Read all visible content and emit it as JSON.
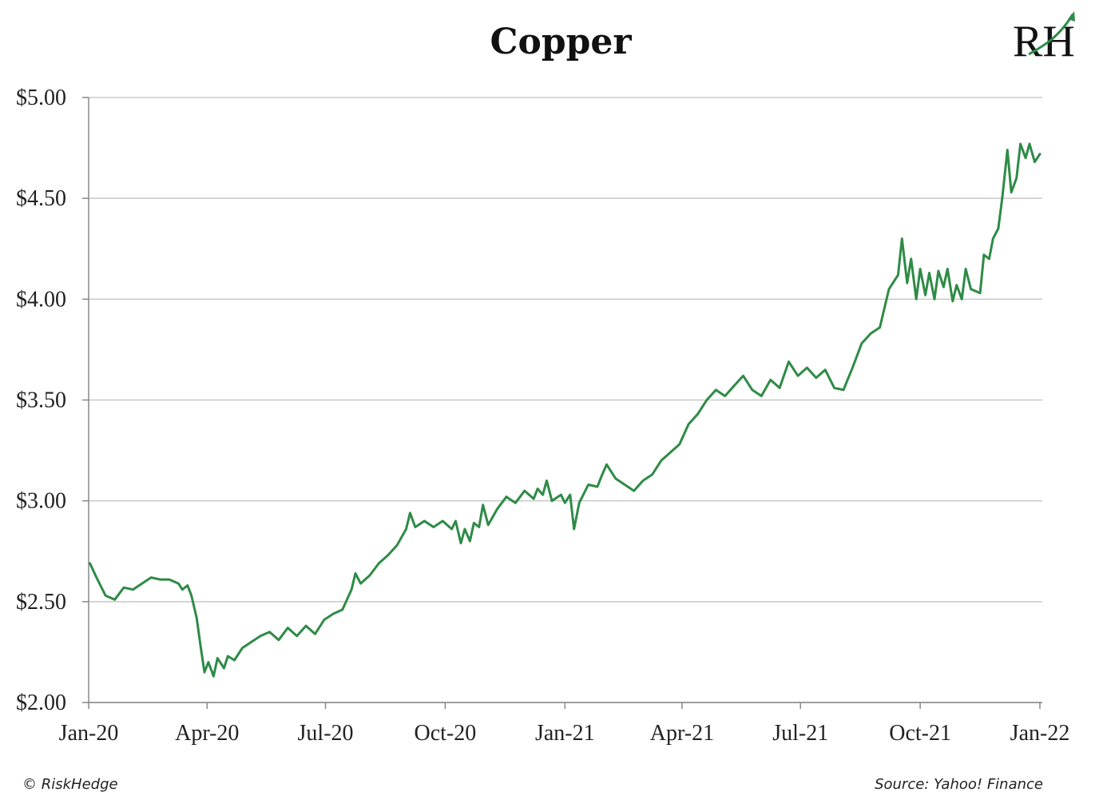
{
  "chart_data": {
    "type": "line",
    "title": "Copper",
    "xlabel": "",
    "ylabel": "",
    "ylim": [
      2.0,
      5.0
    ],
    "y_ticks": [
      {
        "value": 2.0,
        "label": "$2.00"
      },
      {
        "value": 2.5,
        "label": "$2.50"
      },
      {
        "value": 3.0,
        "label": "$3.00"
      },
      {
        "value": 3.5,
        "label": "$3.50"
      },
      {
        "value": 4.0,
        "label": "$4.00"
      },
      {
        "value": 4.5,
        "label": "$4.50"
      },
      {
        "value": 5.0,
        "label": "$5.00"
      }
    ],
    "x_ticks": [
      "Jan-20",
      "Apr-20",
      "Jul-20",
      "Oct-20",
      "Jan-21",
      "Apr-21",
      "Jul-21",
      "Oct-21",
      "Jan-22"
    ],
    "grid": true,
    "line_color": "#2e8b47",
    "series": [
      {
        "points": [
          [
            "2020-01-02",
            2.69
          ],
          [
            "2020-01-07",
            2.62
          ],
          [
            "2020-01-14",
            2.53
          ],
          [
            "2020-01-21",
            2.51
          ],
          [
            "2020-01-28",
            2.57
          ],
          [
            "2020-02-04",
            2.56
          ],
          [
            "2020-02-11",
            2.59
          ],
          [
            "2020-02-18",
            2.62
          ],
          [
            "2020-02-25",
            2.61
          ],
          [
            "2020-03-03",
            2.61
          ],
          [
            "2020-03-10",
            2.59
          ],
          [
            "2020-03-13",
            2.56
          ],
          [
            "2020-03-17",
            2.58
          ],
          [
            "2020-03-20",
            2.53
          ],
          [
            "2020-03-24",
            2.42
          ],
          [
            "2020-03-27",
            2.28
          ],
          [
            "2020-03-30",
            2.15
          ],
          [
            "2020-04-02",
            2.2
          ],
          [
            "2020-04-06",
            2.13
          ],
          [
            "2020-04-09",
            2.22
          ],
          [
            "2020-04-14",
            2.17
          ],
          [
            "2020-04-17",
            2.23
          ],
          [
            "2020-04-22",
            2.21
          ],
          [
            "2020-04-28",
            2.27
          ],
          [
            "2020-05-05",
            2.3
          ],
          [
            "2020-05-12",
            2.33
          ],
          [
            "2020-05-19",
            2.35
          ],
          [
            "2020-05-26",
            2.31
          ],
          [
            "2020-06-02",
            2.37
          ],
          [
            "2020-06-09",
            2.33
          ],
          [
            "2020-06-16",
            2.38
          ],
          [
            "2020-06-23",
            2.34
          ],
          [
            "2020-06-30",
            2.41
          ],
          [
            "2020-07-07",
            2.44
          ],
          [
            "2020-07-14",
            2.46
          ],
          [
            "2020-07-21",
            2.56
          ],
          [
            "2020-07-24",
            2.64
          ],
          [
            "2020-07-28",
            2.59
          ],
          [
            "2020-08-04",
            2.63
          ],
          [
            "2020-08-11",
            2.69
          ],
          [
            "2020-08-18",
            2.73
          ],
          [
            "2020-08-25",
            2.78
          ],
          [
            "2020-09-01",
            2.86
          ],
          [
            "2020-09-04",
            2.94
          ],
          [
            "2020-09-08",
            2.87
          ],
          [
            "2020-09-15",
            2.9
          ],
          [
            "2020-09-22",
            2.87
          ],
          [
            "2020-09-29",
            2.9
          ],
          [
            "2020-10-06",
            2.86
          ],
          [
            "2020-10-09",
            2.9
          ],
          [
            "2020-10-13",
            2.79
          ],
          [
            "2020-10-16",
            2.86
          ],
          [
            "2020-10-20",
            2.8
          ],
          [
            "2020-10-23",
            2.89
          ],
          [
            "2020-10-27",
            2.87
          ],
          [
            "2020-10-30",
            2.98
          ],
          [
            "2020-11-03",
            2.88
          ],
          [
            "2020-11-10",
            2.96
          ],
          [
            "2020-11-17",
            3.02
          ],
          [
            "2020-11-24",
            2.99
          ],
          [
            "2020-12-01",
            3.05
          ],
          [
            "2020-12-08",
            3.01
          ],
          [
            "2020-12-11",
            3.06
          ],
          [
            "2020-12-15",
            3.03
          ],
          [
            "2020-12-18",
            3.1
          ],
          [
            "2020-12-22",
            3.0
          ],
          [
            "2020-12-29",
            3.03
          ],
          [
            "2021-01-01",
            2.99
          ],
          [
            "2021-01-05",
            3.03
          ],
          [
            "2021-01-08",
            2.86
          ],
          [
            "2021-01-12",
            2.99
          ],
          [
            "2021-01-19",
            3.08
          ],
          [
            "2021-01-26",
            3.07
          ],
          [
            "2021-01-29",
            3.12
          ],
          [
            "2021-02-02",
            3.18
          ],
          [
            "2021-02-09",
            3.11
          ],
          [
            "2021-02-16",
            3.08
          ],
          [
            "2021-02-23",
            3.05
          ],
          [
            "2021-03-02",
            3.1
          ],
          [
            "2021-03-09",
            3.13
          ],
          [
            "2021-03-16",
            3.2
          ],
          [
            "2021-03-23",
            3.24
          ],
          [
            "2021-03-30",
            3.28
          ],
          [
            "2021-04-06",
            3.38
          ],
          [
            "2021-04-13",
            3.43
          ],
          [
            "2021-04-20",
            3.5
          ],
          [
            "2021-04-27",
            3.55
          ],
          [
            "2021-05-04",
            3.52
          ],
          [
            "2021-05-11",
            3.57
          ],
          [
            "2021-05-18",
            3.62
          ],
          [
            "2021-05-25",
            3.55
          ],
          [
            "2021-06-01",
            3.52
          ],
          [
            "2021-06-08",
            3.6
          ],
          [
            "2021-06-15",
            3.56
          ],
          [
            "2021-06-22",
            3.69
          ],
          [
            "2021-06-29",
            3.62
          ],
          [
            "2021-07-06",
            3.66
          ],
          [
            "2021-07-13",
            3.61
          ],
          [
            "2021-07-20",
            3.65
          ],
          [
            "2021-07-27",
            3.56
          ],
          [
            "2021-08-03",
            3.55
          ],
          [
            "2021-08-10",
            3.66
          ],
          [
            "2021-08-17",
            3.78
          ],
          [
            "2021-08-24",
            3.83
          ],
          [
            "2021-08-31",
            3.86
          ],
          [
            "2021-09-07",
            4.05
          ],
          [
            "2021-09-14",
            4.12
          ],
          [
            "2021-09-17",
            4.3
          ],
          [
            "2021-09-21",
            4.08
          ],
          [
            "2021-09-24",
            4.2
          ],
          [
            "2021-09-28",
            4.0
          ],
          [
            "2021-10-01",
            4.15
          ],
          [
            "2021-10-05",
            4.02
          ],
          [
            "2021-10-08",
            4.13
          ],
          [
            "2021-10-12",
            4.0
          ],
          [
            "2021-10-15",
            4.14
          ],
          [
            "2021-10-19",
            4.06
          ],
          [
            "2021-10-22",
            4.15
          ],
          [
            "2021-10-26",
            3.99
          ],
          [
            "2021-10-29",
            4.07
          ],
          [
            "2021-11-02",
            4.0
          ],
          [
            "2021-11-05",
            4.15
          ],
          [
            "2021-11-09",
            4.05
          ],
          [
            "2021-11-16",
            4.03
          ],
          [
            "2021-11-19",
            4.22
          ],
          [
            "2021-11-23",
            4.2
          ],
          [
            "2021-11-26",
            4.3
          ],
          [
            "2021-11-30",
            4.35
          ],
          [
            "2021-12-03",
            4.5
          ],
          [
            "2021-12-07",
            4.74
          ],
          [
            "2021-12-10",
            4.53
          ],
          [
            "2021-12-14",
            4.6
          ],
          [
            "2021-12-17",
            4.77
          ],
          [
            "2021-12-21",
            4.7
          ],
          [
            "2021-12-24",
            4.77
          ],
          [
            "2021-12-28",
            4.68
          ],
          [
            "2022-01-01",
            4.72
          ]
        ]
      }
    ],
    "footer_left": "© RiskHedge",
    "footer_right": "Source: Yahoo! Finance",
    "logo_text": "RH"
  }
}
